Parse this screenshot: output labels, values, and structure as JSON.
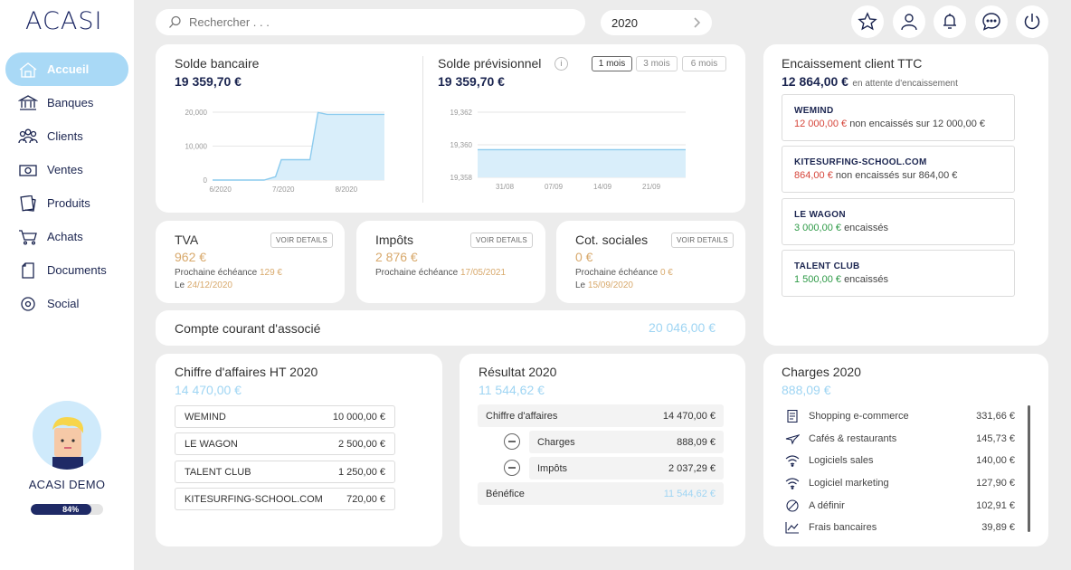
{
  "app": {
    "logo": "ACASI"
  },
  "sidebar": {
    "items": [
      {
        "label": "Accueil",
        "icon": "home-icon",
        "active": true
      },
      {
        "label": "Banques",
        "icon": "bank-icon"
      },
      {
        "label": "Clients",
        "icon": "users-icon"
      },
      {
        "label": "Ventes",
        "icon": "cash-icon"
      },
      {
        "label": "Produits",
        "icon": "products-icon"
      },
      {
        "label": "Achats",
        "icon": "cart-icon"
      },
      {
        "label": "Documents",
        "icon": "document-icon"
      },
      {
        "label": "Social",
        "icon": "social-icon"
      }
    ],
    "profile": {
      "name": "ACASI DEMO",
      "progress_label": "84%",
      "progress_value": 84
    }
  },
  "header": {
    "search_placeholder": "Rechercher . . .",
    "year": "2020",
    "icons": [
      "star-icon",
      "user-icon",
      "bell-icon",
      "chat-icon",
      "power-icon"
    ]
  },
  "solde_bancaire": {
    "title": "Solde bancaire",
    "value": "19 359,70 €",
    "chart_data": {
      "type": "area",
      "x": [
        "6/2020",
        "7/2020",
        "8/2020"
      ],
      "yticks": [
        "20,000",
        "10,000",
        "0"
      ],
      "ylim": [
        0,
        20000
      ],
      "points": [
        [
          0,
          0
        ],
        [
          0.45,
          0
        ],
        [
          0.55,
          1000
        ],
        [
          0.6,
          6000
        ],
        [
          0.85,
          6000
        ],
        [
          0.92,
          19900
        ],
        [
          1.0,
          19360
        ],
        [
          1.5,
          19360
        ]
      ]
    }
  },
  "solde_previsionnel": {
    "title": "Solde prévisionnel",
    "value": "19 359,70 €",
    "tabs": [
      "1 mois",
      "3 mois",
      "6 mois"
    ],
    "chart_data": {
      "type": "area",
      "x": [
        "31/08",
        "07/09",
        "14/09",
        "21/09"
      ],
      "yticks": [
        "19,362",
        "19,360",
        "19,358"
      ],
      "ylim": [
        19358,
        19362
      ],
      "value": 19359.7
    }
  },
  "tva": {
    "title": "TVA",
    "value": "962 €",
    "btn": "VOIR DETAILS",
    "line1_label": "Prochaine échéance",
    "line1_value": "129 €",
    "line2_label": "Le",
    "line2_value": "24/12/2020"
  },
  "impots": {
    "title": "Impôts",
    "value": "2 876 €",
    "btn": "VOIR DETAILS",
    "line1_label": "Prochaine échéance",
    "line1_value": "17/05/2021"
  },
  "cot": {
    "title": "Cot. sociales",
    "value": "0 €",
    "btn": "VOIR DETAILS",
    "line1_label": "Prochaine échéance",
    "line1_value": "0 €",
    "line2_label": "Le",
    "line2_value": "15/09/2020"
  },
  "compte_courant": {
    "title": "Compte courant d'associé",
    "value": "20 046,00 €"
  },
  "encaissement": {
    "title": "Encaissement client TTC",
    "value": "12 864,00 €",
    "sub": "en attente d'encaissement",
    "clients": [
      {
        "name": "WEMIND",
        "amount": "12 000,00 €",
        "text": "non encaissés sur 12 000,00 €",
        "color": "red"
      },
      {
        "name": "KITESURFING-SCHOOL.COM",
        "amount": "864,00 €",
        "text": "non encaissés sur 864,00 €",
        "color": "red"
      },
      {
        "name": "LE WAGON",
        "amount": "3 000,00 €",
        "text": "encaissés",
        "color": "green"
      },
      {
        "name": "TALENT CLUB",
        "amount": "1 500,00 €",
        "text": "encaissés",
        "color": "green"
      }
    ]
  },
  "ca": {
    "title": "Chiffre d'affaires HT 2020",
    "value": "14 470,00 €",
    "rows": [
      {
        "name": "WEMIND",
        "value": "10 000,00 €"
      },
      {
        "name": "LE WAGON",
        "value": "2 500,00 €"
      },
      {
        "name": "TALENT CLUB",
        "value": "1 250,00 €"
      },
      {
        "name": "KITESURFING-SCHOOL.COM",
        "value": "720,00 €"
      }
    ]
  },
  "resultat": {
    "title": "Résultat 2020",
    "value": "11 544,62 €",
    "ca_label": "Chiffre d'affaires",
    "ca_value": "14 470,00 €",
    "charges_label": "Charges",
    "charges_value": "888,09 €",
    "impots_label": "Impôts",
    "impots_value": "2 037,29 €",
    "benefice_label": "Bénéfice",
    "benefice_value": "11 544,62 €"
  },
  "charges": {
    "title": "Charges 2020",
    "value": "888,09 €",
    "rows": [
      {
        "name": "Shopping e-commerce",
        "value": "331,66 €",
        "icon": "receipt-icon"
      },
      {
        "name": "Cafés & restaurants",
        "value": "145,73 €",
        "icon": "plane-icon"
      },
      {
        "name": "Logiciels sales",
        "value": "140,00 €",
        "icon": "wifi-icon"
      },
      {
        "name": "Logiciel marketing",
        "value": "127,90 €",
        "icon": "wifi-icon"
      },
      {
        "name": "A définir",
        "value": "102,91 €",
        "icon": "slash-circle-icon"
      },
      {
        "name": "Frais bancaires",
        "value": "39,89 €",
        "icon": "chart-line-icon"
      }
    ]
  }
}
